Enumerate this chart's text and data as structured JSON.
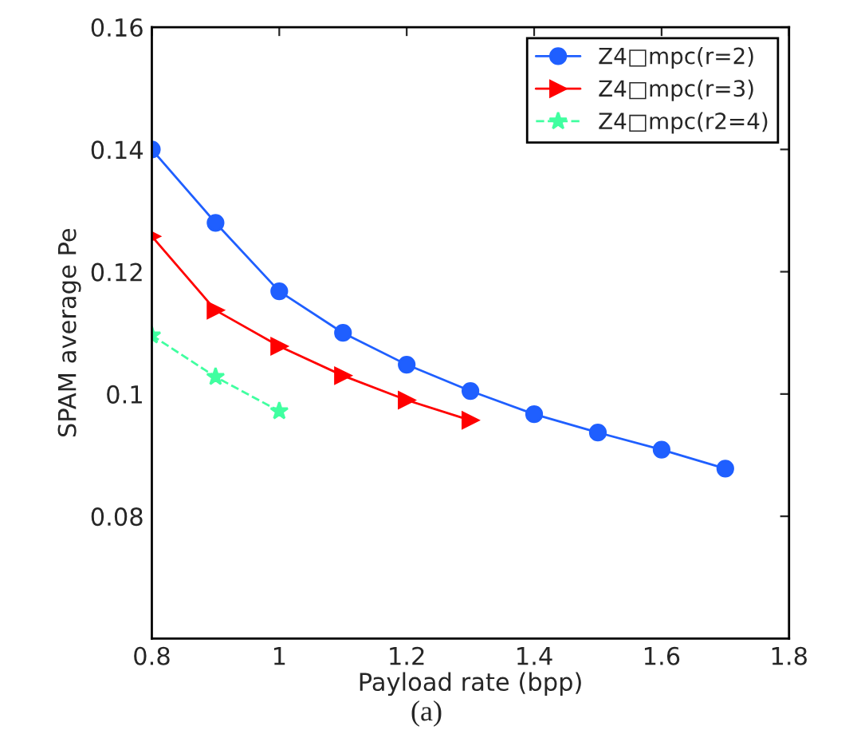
{
  "chart_data": {
    "type": "line",
    "xlabel": "Payload rate (bpp)",
    "ylabel": "SPAM average Pe",
    "annotations": [
      "(a)"
    ],
    "series": [
      {
        "name": "Z4□mpc(r=2)",
        "color": "#1f5fff",
        "marker": "circle",
        "line_style": "solid",
        "x": [
          0.8,
          0.9,
          1.0,
          1.1,
          1.2,
          1.3,
          1.4,
          1.5,
          1.6,
          1.7
        ],
        "values": [
          0.14,
          0.128,
          0.1168,
          0.11,
          0.1048,
          0.1005,
          0.0967,
          0.0937,
          0.0909,
          0.0878
        ]
      },
      {
        "name": "Z4□mpc(r=3)",
        "color": "#ff0000",
        "marker": "triangle",
        "line_style": "solid",
        "x": [
          0.8,
          0.9,
          1.0,
          1.1,
          1.2,
          1.3
        ],
        "values": [
          0.1258,
          0.1137,
          0.1078,
          0.103,
          0.099,
          0.0957
        ]
      },
      {
        "name": "Z4□mpc(r2=4)",
        "color": "#40ffa0",
        "marker": "star",
        "line_style": "dashed",
        "x": [
          0.8,
          0.9,
          1.0
        ],
        "values": [
          0.1096,
          0.1028,
          0.0972
        ]
      }
    ],
    "xlim": [
      0.8,
      1.8
    ],
    "xticks": [
      0.8,
      1,
      1.2,
      1.4,
      1.6,
      1.8
    ],
    "ylim": [
      0.06,
      0.16
    ],
    "yticks": [
      0.08,
      0.1,
      0.12,
      0.14,
      0.16
    ],
    "grid": false,
    "legend": "top right"
  }
}
